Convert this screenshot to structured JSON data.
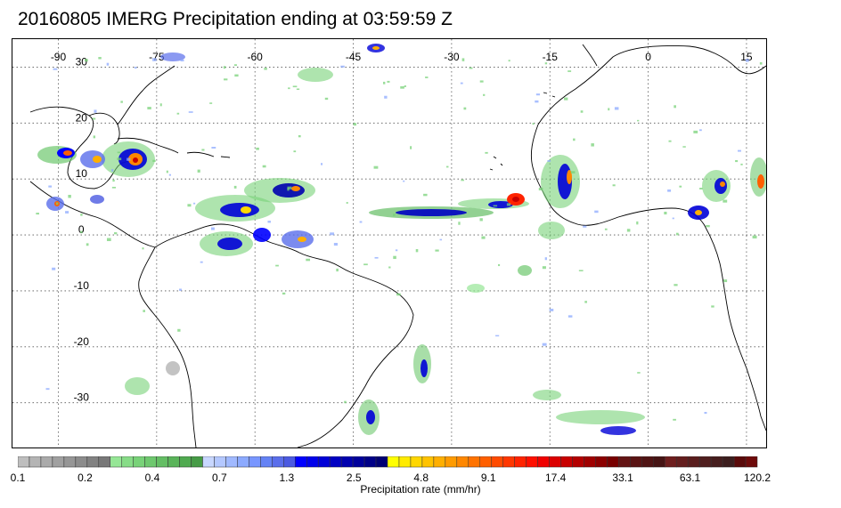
{
  "title": "20160805 IMERG Precipitation ending at 03:59:59 Z",
  "map": {
    "lon_range": [
      -97,
      18
    ],
    "lat_range": [
      -38,
      35
    ],
    "lon_ticks": [
      -90,
      -75,
      -60,
      -45,
      -30,
      -15,
      0,
      15
    ],
    "lon_tick_labels": [
      "-90",
      "-75",
      "-60",
      "-45",
      "-30",
      "-15",
      "0",
      "15"
    ],
    "lat_ticks": [
      30,
      20,
      10,
      0,
      -10,
      -20,
      -30
    ],
    "lat_tick_labels": [
      "30",
      "20",
      "10",
      "0",
      "-10",
      "-20",
      "-30"
    ],
    "gridlines": "dotted"
  },
  "colorbar": {
    "title": "Precipitation rate (mm/hr)",
    "labels": [
      "0.1",
      "0.2",
      "0.4",
      "0.7",
      "1.3",
      "2.5",
      "4.8",
      "9.1",
      "17.4",
      "33.1",
      "63.1",
      "120.2"
    ],
    "colors": [
      "#bebebe",
      "#b4b4b4",
      "#aaaaaa",
      "#a0a0a0",
      "#969696",
      "#8c8c8c",
      "#828282",
      "#787878",
      "#96e696",
      "#87dc87",
      "#78d278",
      "#6ec86e",
      "#64be64",
      "#5ab45a",
      "#50aa50",
      "#469b46",
      "#c8d7ff",
      "#b4c8ff",
      "#a0b9ff",
      "#8caaff",
      "#7896ff",
      "#6482f5",
      "#5a6eeb",
      "#4b5ae1",
      "#0000ff",
      "#0000eb",
      "#0000d7",
      "#0000c3",
      "#0000af",
      "#00009b",
      "#000087",
      "#000073",
      "#ffff00",
      "#ffeb00",
      "#ffd700",
      "#ffc300",
      "#ffaf00",
      "#ff9b00",
      "#ff8700",
      "#ff7300",
      "#ff5f00",
      "#ff4b00",
      "#ff3700",
      "#ff2300",
      "#ff0f00",
      "#f00000",
      "#dc0000",
      "#c80000",
      "#b40000",
      "#a00000",
      "#8c0000",
      "#780000",
      "#641414",
      "#5a1414",
      "#501414",
      "#461414",
      "#6e1e1e",
      "#641e1e",
      "#5a1e1e",
      "#501e1e",
      "#461e1e",
      "#3c1e1e",
      "#5a0a0a",
      "#6e0a0a"
    ]
  }
}
